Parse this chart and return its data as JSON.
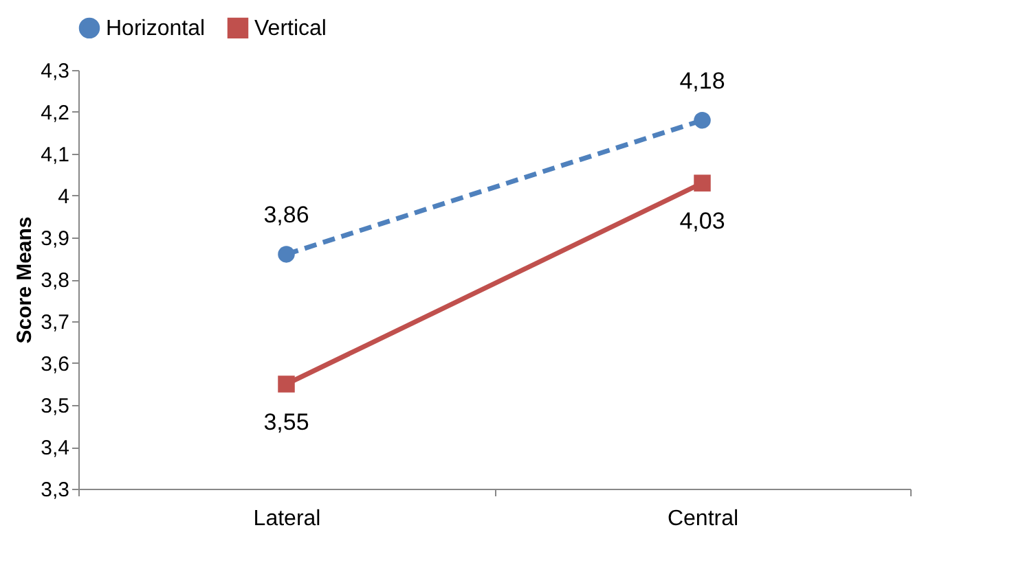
{
  "chart_data": {
    "type": "line",
    "ylabel": "Score Means",
    "categories": [
      "Lateral",
      "Central"
    ],
    "series": [
      {
        "name": "Horizontal",
        "color": "#4f81bd",
        "values": [
          3.86,
          4.18
        ],
        "value_labels": [
          "3,86",
          "4,18"
        ],
        "marker": "circle",
        "line_style": "dashed"
      },
      {
        "name": "Vertical",
        "color": "#c0504d",
        "values": [
          3.55,
          4.03
        ],
        "value_labels": [
          "3,55",
          "4,03"
        ],
        "marker": "square",
        "line_style": "solid"
      }
    ],
    "ylim": [
      3.3,
      4.3
    ],
    "yticks": [
      {
        "value": 3.3,
        "label": "3,3"
      },
      {
        "value": 3.4,
        "label": "3,4"
      },
      {
        "value": 3.5,
        "label": "3,5"
      },
      {
        "value": 3.6,
        "label": "3,6"
      },
      {
        "value": 3.7,
        "label": "3,7"
      },
      {
        "value": 3.8,
        "label": "3,8"
      },
      {
        "value": 3.9,
        "label": "3,9"
      },
      {
        "value": 4,
        "label": "4"
      },
      {
        "value": 4.1,
        "label": "4,1"
      },
      {
        "value": 4.2,
        "label": "4,2"
      },
      {
        "value": 4.3,
        "label": "4,3"
      }
    ],
    "grid": false,
    "legend": "top"
  }
}
